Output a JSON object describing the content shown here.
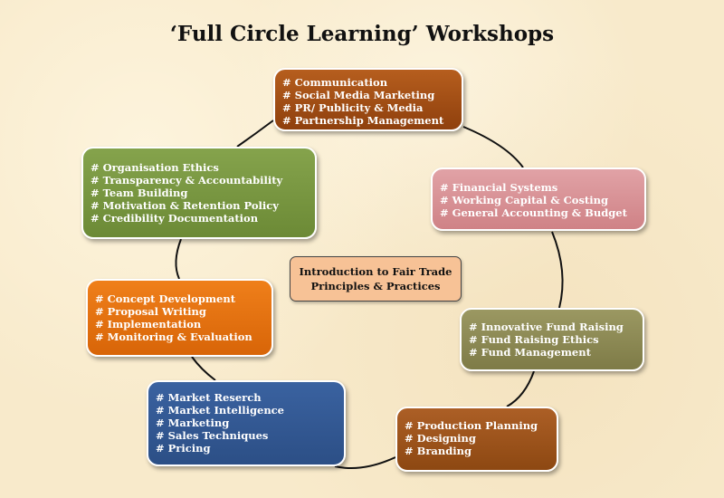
{
  "title": "‘Full Circle Learning’ Workshops",
  "center": {
    "line1": "Introduction to Fair Trade",
    "line2": "Principles & Practices"
  },
  "boxes": {
    "communication": {
      "color": "#a04d15",
      "items": [
        "Communication",
        "Social Media Marketing",
        "PR/ Publicity & Media",
        "Partnership Management"
      ]
    },
    "financial": {
      "color": "#d8929a",
      "items": [
        "Financial Systems",
        "Working Capital & Costing",
        "General Accounting & Budget"
      ]
    },
    "organisation": {
      "color": "#789640",
      "items": [
        "Organisation Ethics",
        "Transparency & Accountability",
        "Team Building",
        "Motivation & Retention Policy",
        "Credibility Documentation"
      ]
    },
    "fund": {
      "color": "#8c8954",
      "items": [
        "Innovative Fund Raising",
        "Fund Raising Ethics",
        "Fund Management"
      ]
    },
    "concept": {
      "color": "#e4700f",
      "items": [
        "Concept Development",
        "Proposal Writing",
        "Implementation",
        "Monitoring & Evaluation"
      ]
    },
    "market": {
      "color": "#355993",
      "items": [
        "Market Reserch",
        "Market Intelligence",
        "Marketing",
        "Sales Techniques",
        "Pricing"
      ]
    },
    "production": {
      "color": "#9c531c",
      "items": [
        "Production Planning",
        "Designing",
        "Branding"
      ]
    }
  }
}
